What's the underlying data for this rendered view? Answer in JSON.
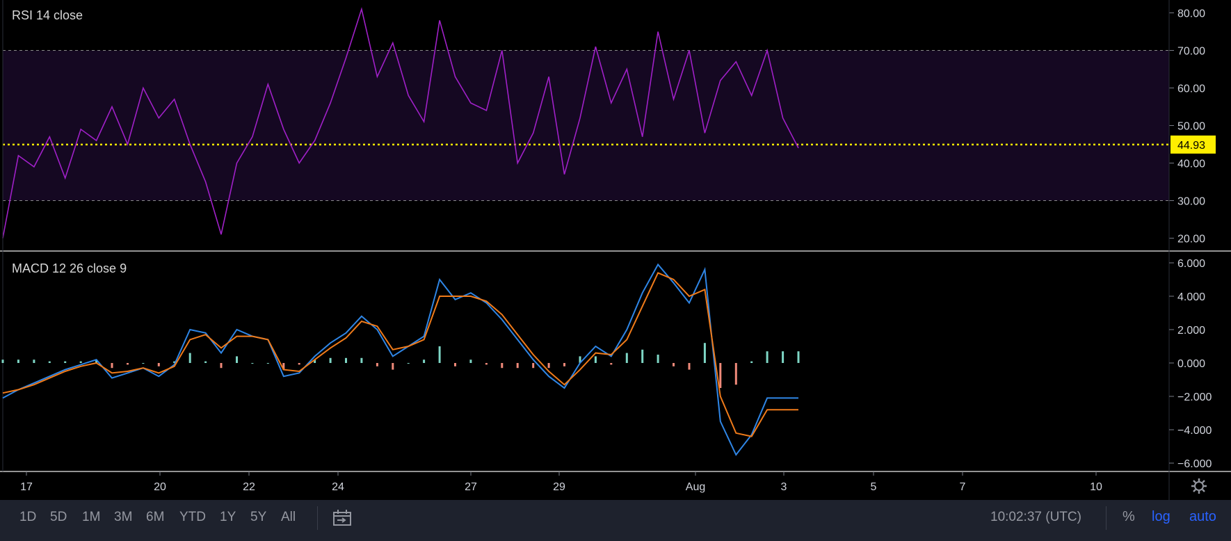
{
  "rsi": {
    "label": "RSI 14 close",
    "current_value": "44.93",
    "y_ticks": [
      "80.00",
      "70.00",
      "60.00",
      "50.00",
      "40.00",
      "30.00",
      "20.00"
    ],
    "colors": {
      "line": "#a020c8",
      "band": "#150822",
      "current": "#ffee00"
    }
  },
  "macd": {
    "label": "MACD 12 26 close 9",
    "y_ticks": [
      "6.000",
      "4.000",
      "2.000",
      "0.000",
      "−2.000",
      "−4.000",
      "−6.000"
    ],
    "colors": {
      "macd": "#2f86e6",
      "signal": "#f07b1a",
      "hist_pos": "#7ed6c5",
      "hist_neg": "#f08a7a"
    }
  },
  "x_axis": {
    "labels": [
      "17",
      "20",
      "22",
      "24",
      "27",
      "29",
      "Aug",
      "3",
      "5",
      "7",
      "10"
    ]
  },
  "chart_data": [
    {
      "type": "line",
      "title": "RSI 14 close",
      "x": [
        0,
        4,
        8,
        12,
        16,
        20,
        24,
        28,
        32,
        36,
        40,
        44,
        48,
        52,
        56,
        60,
        64,
        68,
        72,
        76,
        80,
        84,
        88,
        92,
        96,
        100,
        104,
        108,
        112,
        116,
        120,
        124,
        128,
        132,
        136,
        140,
        144,
        148,
        152,
        156,
        160,
        164,
        168,
        172,
        176,
        180,
        184,
        188,
        192,
        196,
        200,
        204
      ],
      "values": [
        20,
        42,
        39,
        47,
        36,
        49,
        46,
        55,
        45,
        60,
        52,
        57,
        45,
        35,
        21,
        40,
        47,
        61,
        49,
        40,
        46,
        56,
        68,
        81,
        63,
        72,
        58,
        51,
        78,
        63,
        56,
        54,
        70,
        40,
        48,
        63,
        37,
        52,
        71,
        56,
        65,
        47,
        75,
        57,
        70,
        48,
        62,
        67,
        58,
        70,
        52,
        44
      ],
      "ylim": [
        16,
        82
      ],
      "reference_lines": [
        70,
        30
      ],
      "current_value": 44.93
    },
    {
      "type": "line",
      "title": "MACD 12 26 close 9",
      "x": [
        0,
        4,
        8,
        12,
        16,
        20,
        24,
        28,
        32,
        36,
        40,
        44,
        48,
        52,
        56,
        60,
        64,
        68,
        72,
        76,
        80,
        84,
        88,
        92,
        96,
        100,
        104,
        108,
        112,
        116,
        120,
        124,
        128,
        132,
        136,
        140,
        144,
        148,
        152,
        156,
        160,
        164,
        168,
        172,
        176,
        180,
        184,
        188,
        192,
        196,
        200,
        204
      ],
      "series": [
        {
          "name": "MACD",
          "values": [
            -2.1,
            -1.6,
            -1.2,
            -0.8,
            -0.4,
            -0.1,
            0.2,
            -0.9,
            -0.6,
            -0.3,
            -0.8,
            -0.1,
            2.0,
            1.8,
            0.6,
            2.0,
            1.6,
            1.4,
            -0.8,
            -0.6,
            0.4,
            1.2,
            1.8,
            2.8,
            2.0,
            0.4,
            1.0,
            1.6,
            5.0,
            3.8,
            4.2,
            3.6,
            2.6,
            1.4,
            0.2,
            -0.8,
            -1.5,
            0.0,
            1.0,
            0.4,
            2.0,
            4.2,
            5.9,
            4.8,
            3.6,
            5.6,
            -3.5,
            -5.5,
            -4.3,
            -2.1,
            -2.1,
            -2.1
          ]
        },
        {
          "name": "Signal",
          "values": [
            -1.8,
            -1.6,
            -1.3,
            -0.9,
            -0.5,
            -0.2,
            0.0,
            -0.6,
            -0.5,
            -0.3,
            -0.6,
            -0.2,
            1.4,
            1.7,
            0.9,
            1.6,
            1.6,
            1.4,
            -0.4,
            -0.5,
            0.2,
            0.9,
            1.5,
            2.5,
            2.2,
            0.8,
            1.0,
            1.4,
            4.0,
            4.0,
            4.0,
            3.7,
            2.9,
            1.7,
            0.5,
            -0.5,
            -1.3,
            -0.4,
            0.6,
            0.5,
            1.4,
            3.4,
            5.4,
            5.0,
            4.0,
            4.4,
            -2.0,
            -4.2,
            -4.4,
            -2.8,
            -2.8,
            -2.8
          ]
        },
        {
          "name": "Histogram",
          "values": [
            0.2,
            0.2,
            0.2,
            0.1,
            0.1,
            0.1,
            0.2,
            -0.3,
            -0.1,
            0.0,
            -0.2,
            0.1,
            0.6,
            0.1,
            -0.3,
            0.4,
            0.0,
            0.0,
            -0.4,
            -0.1,
            0.2,
            0.3,
            0.3,
            0.3,
            -0.2,
            -0.4,
            0.0,
            0.2,
            1.0,
            -0.2,
            0.2,
            -0.1,
            -0.3,
            -0.3,
            -0.3,
            -0.3,
            -0.2,
            0.4,
            0.4,
            -0.1,
            0.6,
            0.8,
            0.5,
            -0.2,
            -0.4,
            1.2,
            -1.5,
            -1.3,
            0.1,
            0.7,
            0.7,
            0.7
          ]
        }
      ],
      "ylim": [
        -6.2,
        6.2
      ]
    }
  ],
  "bottom_bar": {
    "timeframes": [
      "1D",
      "5D",
      "1M",
      "3M",
      "6M",
      "YTD",
      "1Y",
      "5Y",
      "All"
    ],
    "clock": "10:02:37 (UTC)",
    "percent": "%",
    "log": "log",
    "auto": "auto"
  }
}
